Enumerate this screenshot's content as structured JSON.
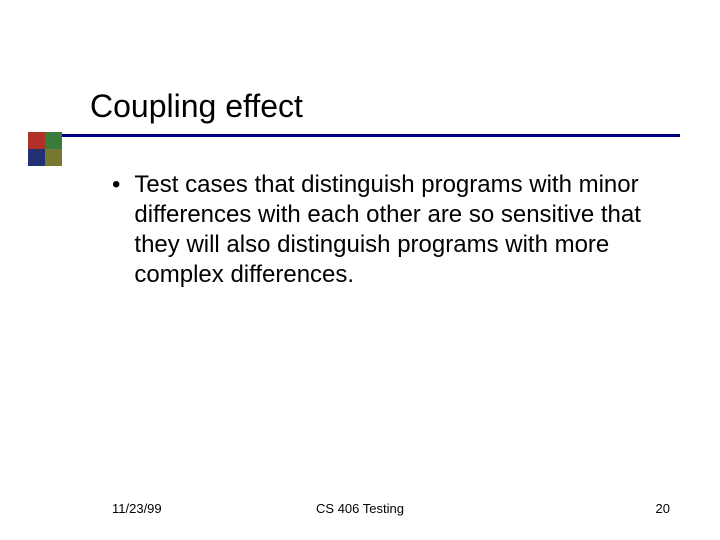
{
  "slide": {
    "title": "Coupling effect",
    "bullet_text": "Test cases that distinguish programs with minor differences with each other are so sensitive that they will also distinguish programs with more complex differences.",
    "footer": {
      "date": "11/23/99",
      "course": "CS 406 Testing",
      "page_number": "20"
    },
    "colors": {
      "underline": "#000080",
      "block_red": "#b03028",
      "block_green": "#3a7a3a",
      "block_blue": "#203070",
      "block_olive": "#787830",
      "text": "#000000",
      "background": "#ffffff"
    },
    "typography": {
      "title_fontsize": 32,
      "body_fontsize": 24,
      "footer_fontsize": 13,
      "font_family": "Arial"
    }
  }
}
